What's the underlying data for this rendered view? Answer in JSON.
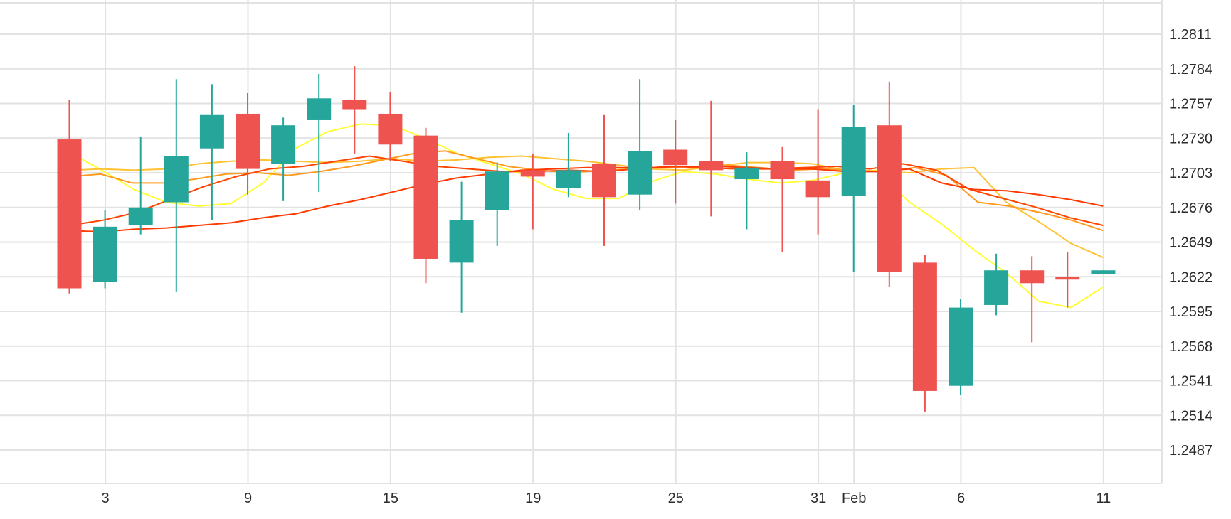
{
  "chart_data": {
    "type": "candlestick",
    "title": "",
    "xlabel": "",
    "ylabel": "",
    "x_tick_labels": [
      "3",
      "9",
      "15",
      "19",
      "25",
      "31",
      "Feb",
      "6",
      "11"
    ],
    "y_tick_labels": [
      "1.2811",
      "1.2784",
      "1.2757",
      "1.2730",
      "1.2703",
      "1.2676",
      "1.2649",
      "1.2622",
      "1.2595",
      "1.2568",
      "1.2541",
      "1.2514",
      "1.2487"
    ],
    "ylim": [
      1.246,
      1.2838
    ],
    "grid": true,
    "colors": {
      "up": "#26a69a",
      "down": "#ef5350"
    },
    "candles": [
      {
        "open": 1.2729,
        "high": 1.276,
        "low": 1.2609,
        "close": 1.2613
      },
      {
        "open": 1.2618,
        "high": 1.2674,
        "low": 1.2613,
        "close": 1.2661
      },
      {
        "open": 1.2662,
        "high": 1.2731,
        "low": 1.2655,
        "close": 1.2676
      },
      {
        "open": 1.268,
        "high": 1.2776,
        "low": 1.261,
        "close": 1.2716
      },
      {
        "open": 1.2722,
        "high": 1.2772,
        "low": 1.2666,
        "close": 1.2748
      },
      {
        "open": 1.2749,
        "high": 1.2765,
        "low": 1.2686,
        "close": 1.2706
      },
      {
        "open": 1.271,
        "high": 1.2746,
        "low": 1.2681,
        "close": 1.274
      },
      {
        "open": 1.2744,
        "high": 1.278,
        "low": 1.2688,
        "close": 1.2761
      },
      {
        "open": 1.276,
        "high": 1.2786,
        "low": 1.2718,
        "close": 1.2752
      },
      {
        "open": 1.2749,
        "high": 1.2766,
        "low": 1.2712,
        "close": 1.2725
      },
      {
        "open": 1.2732,
        "high": 1.2738,
        "low": 1.2617,
        "close": 1.2636
      },
      {
        "open": 1.2633,
        "high": 1.2696,
        "low": 1.2594,
        "close": 1.2666
      },
      {
        "open": 1.2674,
        "high": 1.2711,
        "low": 1.2646,
        "close": 1.2704
      },
      {
        "open": 1.2705,
        "high": 1.2718,
        "low": 1.2659,
        "close": 1.27
      },
      {
        "open": 1.2691,
        "high": 1.2734,
        "low": 1.2684,
        "close": 1.2705
      },
      {
        "open": 1.271,
        "high": 1.2748,
        "low": 1.2646,
        "close": 1.2684
      },
      {
        "open": 1.2686,
        "high": 1.2776,
        "low": 1.2674,
        "close": 1.272
      },
      {
        "open": 1.2721,
        "high": 1.2744,
        "low": 1.2679,
        "close": 1.2709
      },
      {
        "open": 1.2712,
        "high": 1.2759,
        "low": 1.2669,
        "close": 1.2705
      },
      {
        "open": 1.2698,
        "high": 1.2719,
        "low": 1.2659,
        "close": 1.2707
      },
      {
        "open": 1.2712,
        "high": 1.2723,
        "low": 1.2641,
        "close": 1.2698
      },
      {
        "open": 1.2697,
        "high": 1.2752,
        "low": 1.2655,
        "close": 1.2684
      },
      {
        "open": 1.2685,
        "high": 1.2756,
        "low": 1.2626,
        "close": 1.2739
      },
      {
        "open": 1.274,
        "high": 1.2774,
        "low": 1.2614,
        "close": 1.2626
      },
      {
        "open": 1.2633,
        "high": 1.2639,
        "low": 1.2517,
        "close": 1.2533
      },
      {
        "open": 1.2537,
        "high": 1.2605,
        "low": 1.253,
        "close": 1.2598
      },
      {
        "open": 1.26,
        "high": 1.264,
        "low": 1.2592,
        "close": 1.2627
      },
      {
        "open": 1.2627,
        "high": 1.2638,
        "low": 1.2571,
        "close": 1.2617
      },
      {
        "open": 1.2622,
        "high": 1.2641,
        "low": 1.2598,
        "close": 1.262
      },
      {
        "open": 1.2624,
        "high": 1.2627,
        "low": 1.2624,
        "close": 1.2627
      }
    ],
    "moving_averages": [
      {
        "color": "#ffff33",
        "values": [
          1.2719,
          1.2705,
          1.269,
          1.268,
          1.2677,
          1.2679,
          1.2695,
          1.2722,
          1.2735,
          1.2741,
          1.274,
          1.273,
          1.2718,
          1.271,
          1.2702,
          1.269,
          1.2683,
          1.2683,
          1.2696,
          1.2704,
          1.2702,
          1.2698,
          1.2695,
          1.2697,
          1.2703,
          1.2705,
          1.268,
          1.2663,
          1.2643,
          1.2625,
          1.2603,
          1.2598,
          1.2614
        ]
      },
      {
        "color": "#ffc233",
        "values": [
          1.2705,
          1.2706,
          1.2705,
          1.2706,
          1.271,
          1.2712,
          1.2713,
          1.2712,
          1.2711,
          1.2712,
          1.2714,
          1.2712,
          1.2713,
          1.2715,
          1.2716,
          1.2714,
          1.2712,
          1.2709,
          1.2706,
          1.2705,
          1.2708,
          1.2711,
          1.2711,
          1.271,
          1.2705,
          1.2704,
          1.2703,
          1.2706,
          1.2707,
          1.268,
          1.2665,
          1.2648,
          1.2637
        ]
      },
      {
        "color": "#ff9a1f",
        "values": [
          1.27,
          1.2702,
          1.2695,
          1.2695,
          1.2698,
          1.2702,
          1.2703,
          1.2701,
          1.2704,
          1.2708,
          1.2713,
          1.2718,
          1.272,
          1.2714,
          1.2708,
          1.2705,
          1.2703,
          1.2705,
          1.2706,
          1.2707,
          1.2708,
          1.2709,
          1.2707,
          1.2705,
          1.2706,
          1.2705,
          1.2704,
          1.2707,
          1.2701,
          1.268,
          1.2677,
          1.2672,
          1.2666,
          1.2658
        ]
      },
      {
        "color": "#ff4500",
        "values": [
          1.2662,
          1.2666,
          1.2672,
          1.2682,
          1.2692,
          1.27,
          1.2706,
          1.2708,
          1.2712,
          1.2716,
          1.2712,
          1.2708,
          1.2706,
          1.2704,
          1.2704,
          1.2705,
          1.2704,
          1.2706,
          1.2708,
          1.2707,
          1.2706,
          1.2706,
          1.2707,
          1.2708,
          1.2706,
          1.271,
          1.2705,
          1.269,
          1.2683,
          1.2676,
          1.2668,
          1.2662
        ]
      },
      {
        "color": "#ff3a00",
        "values": [
          1.2658,
          1.2657,
          1.2659,
          1.266,
          1.2662,
          1.2664,
          1.2668,
          1.2671,
          1.2677,
          1.2682,
          1.2688,
          1.2694,
          1.2699,
          1.2702,
          1.2705,
          1.2706,
          1.2707,
          1.2707,
          1.2707,
          1.2708,
          1.2708,
          1.2707,
          1.2706,
          1.2706,
          1.2704,
          1.2704,
          1.2706,
          1.2695,
          1.269,
          1.2689,
          1.2686,
          1.2682,
          1.2677
        ]
      }
    ]
  }
}
